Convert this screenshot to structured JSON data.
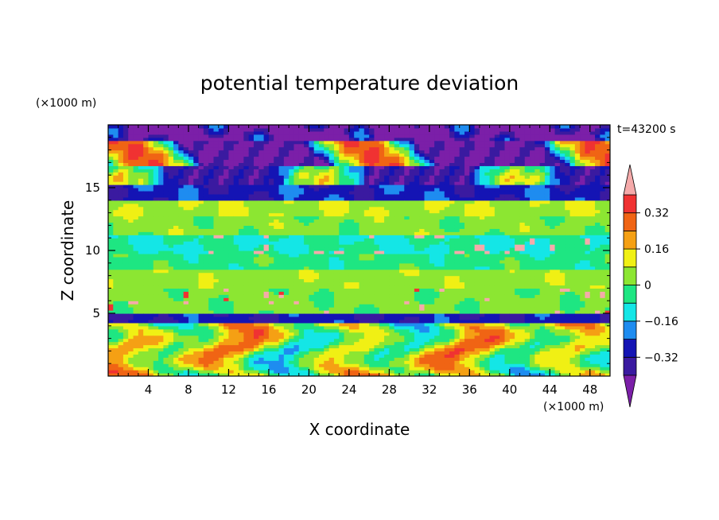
{
  "chart_data": {
    "type": "heatmap",
    "title": "potential temperature deviation",
    "xlabel": "X coordinate",
    "ylabel": "Z coordinate",
    "x_unit": "(×1000 m)",
    "y_unit": "(×1000 m)",
    "time_label": "t=43200 s",
    "xlim": [
      0,
      50
    ],
    "ylim": [
      0,
      20
    ],
    "x_ticks": [
      4,
      8,
      12,
      16,
      20,
      24,
      28,
      32,
      36,
      40,
      44,
      48
    ],
    "x_minor_step": 1,
    "y_ticks": [
      5,
      10,
      15
    ],
    "y_minor_step": 1,
    "colorbar": {
      "levels": [
        -0.4,
        -0.32,
        -0.24,
        -0.16,
        -0.08,
        0,
        0.08,
        0.16,
        0.24,
        0.32,
        0.4
      ],
      "labeled_levels": [
        -0.32,
        -0.16,
        0,
        0.16,
        0.32
      ],
      "labels": [
        "0.32",
        "0.16",
        "0",
        "−0.16",
        "−0.32"
      ],
      "colors": [
        "#7b1fa8",
        "#3a1aa0",
        "#1414b4",
        "#1e8cf0",
        "#14e6e6",
        "#1ee682",
        "#8ce632",
        "#f0f014",
        "#f5a014",
        "#f06414",
        "#f03232",
        "#f5aaaa"
      ],
      "under_color": "#7b1fa8",
      "over_color": "#f5aaaa"
    }
  }
}
